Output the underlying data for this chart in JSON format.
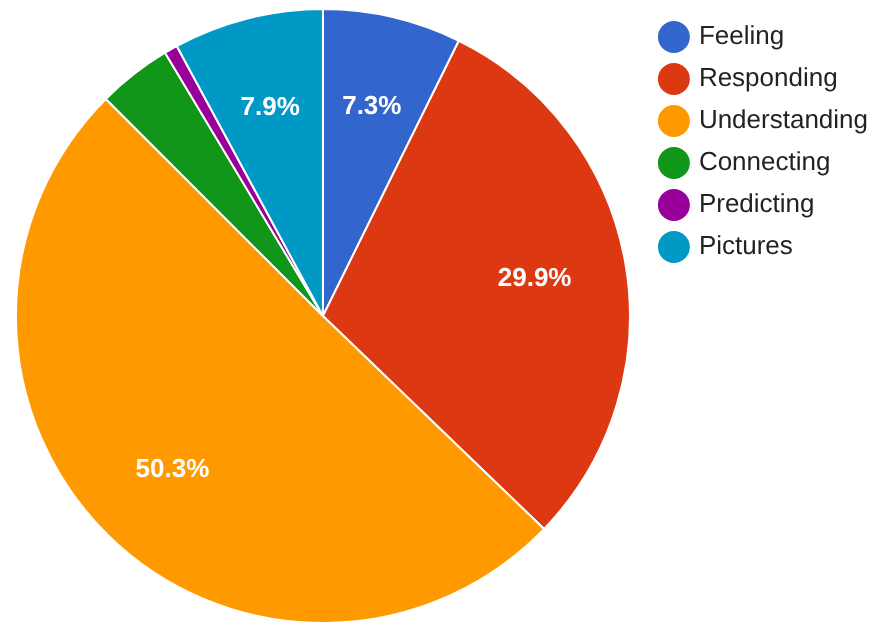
{
  "chart_data": {
    "type": "pie",
    "categories": [
      "Feeling",
      "Responding",
      "Understanding",
      "Connecting",
      "Predicting",
      "Pictures"
    ],
    "values": [
      7.3,
      29.9,
      50.3,
      3.9,
      0.7,
      7.9
    ],
    "value_labels": [
      "7.3%",
      "29.9%",
      "50.3%",
      null,
      null,
      "7.9%"
    ],
    "colors": [
      "#3366cc",
      "#dc3912",
      "#ff9900",
      "#109618",
      "#990099",
      "#0099c6"
    ],
    "legend": "top right"
  }
}
